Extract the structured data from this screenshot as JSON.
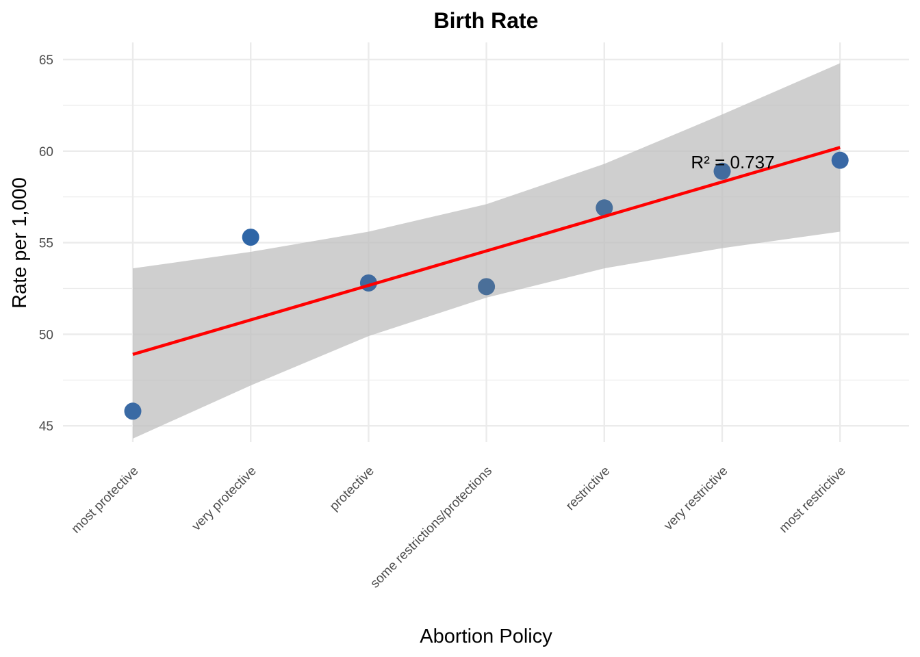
{
  "chart_data": {
    "type": "scatter",
    "title": "Birth Rate",
    "xlabel": "Abortion Policy",
    "ylabel": "Rate per 1,000",
    "categories": [
      "most protective",
      "very protective",
      "protective",
      "some restrictions/protections",
      "restrictive",
      "very restrictive",
      "most restrictive"
    ],
    "values": [
      45.8,
      55.3,
      52.8,
      52.6,
      56.9,
      58.9,
      59.5
    ],
    "point_colors": [
      "#3a6aa4",
      "#2e65a6",
      "#3f6a9f",
      "#4a6f99",
      "#486f9b",
      "#416b9e",
      "#3968a5"
    ],
    "fit_line": {
      "start": 48.9,
      "end": 60.2,
      "color": "#ff0000"
    },
    "confidence_band": {
      "upper": [
        53.6,
        54.5,
        55.6,
        57.1,
        59.3,
        62.0,
        64.8
      ],
      "lower": [
        44.3,
        47.2,
        49.9,
        52.0,
        53.6,
        54.7,
        55.6
      ],
      "color": "#bfbfbf"
    },
    "annotation": "R² = 0.737",
    "annotation_position": {
      "x_index": 5.09,
      "y": 59.4
    },
    "ylim": [
      43.5,
      66
    ],
    "yticks": [
      45,
      50,
      55,
      60,
      65
    ],
    "yticks_minor": [
      47.5,
      52.5,
      57.5,
      62.5
    ],
    "grid": true,
    "grid_color": "#ebebeb"
  }
}
